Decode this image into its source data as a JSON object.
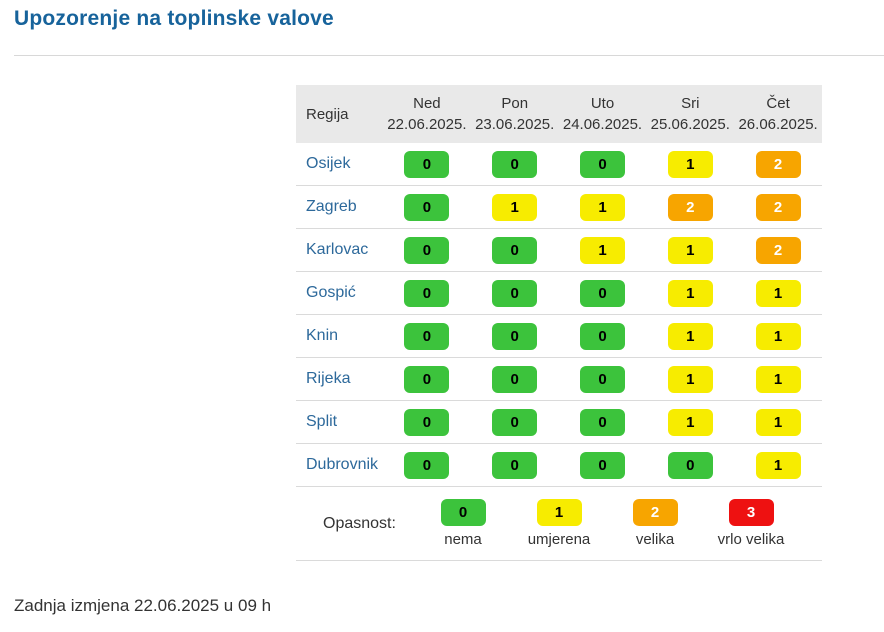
{
  "title": "Upozorenje na toplinske valove",
  "table": {
    "region_header": "Regija",
    "days": [
      {
        "day": "Ned",
        "date": "22.06.2025."
      },
      {
        "day": "Pon",
        "date": "23.06.2025."
      },
      {
        "day": "Uto",
        "date": "24.06.2025."
      },
      {
        "day": "Sri",
        "date": "25.06.2025."
      },
      {
        "day": "Čet",
        "date": "26.06.2025."
      }
    ],
    "rows": [
      {
        "region": "Osijek",
        "values": [
          0,
          0,
          0,
          1,
          2
        ]
      },
      {
        "region": "Zagreb",
        "values": [
          0,
          1,
          1,
          2,
          2
        ]
      },
      {
        "region": "Karlovac",
        "values": [
          0,
          0,
          1,
          1,
          2
        ]
      },
      {
        "region": "Gospić",
        "values": [
          0,
          0,
          0,
          1,
          1
        ]
      },
      {
        "region": "Knin",
        "values": [
          0,
          0,
          0,
          1,
          1
        ]
      },
      {
        "region": "Rijeka",
        "values": [
          0,
          0,
          0,
          1,
          1
        ]
      },
      {
        "region": "Split",
        "values": [
          0,
          0,
          0,
          1,
          1
        ]
      },
      {
        "region": "Dubrovnik",
        "values": [
          0,
          0,
          0,
          0,
          1
        ]
      }
    ]
  },
  "legend": {
    "label": "Opasnost:",
    "items": [
      {
        "value": 0,
        "label": "nema"
      },
      {
        "value": 1,
        "label": "umjerena"
      },
      {
        "value": 2,
        "label": "velika"
      },
      {
        "value": 3,
        "label": "vrlo velika"
      }
    ]
  },
  "levels": {
    "0": {
      "bg": "#3cc33c",
      "fg": "#000000"
    },
    "1": {
      "bg": "#f7ec00",
      "fg": "#000000"
    },
    "2": {
      "bg": "#f7a500",
      "fg": "#ffffff"
    },
    "3": {
      "bg": "#ee1111",
      "fg": "#ffffff"
    }
  },
  "colors": {
    "title": "#17639b",
    "region_link": "#2d699b",
    "header_background": "#e9e9e9",
    "row_border": "#dadada",
    "text": "#333333"
  },
  "footer": {
    "last_updated": "Zadnja izmjena 22.06.2025 u 09 h"
  },
  "chart_data": {
    "type": "table",
    "title": "Upozorenje na toplinske valove",
    "columns": [
      "Regija",
      "Ned 22.06.2025.",
      "Pon 23.06.2025.",
      "Uto 24.06.2025.",
      "Sri 25.06.2025.",
      "Čet 26.06.2025."
    ],
    "categories": [
      "22.06.2025.",
      "23.06.2025.",
      "24.06.2025.",
      "25.06.2025.",
      "26.06.2025."
    ],
    "series": [
      {
        "name": "Osijek",
        "values": [
          0,
          0,
          0,
          1,
          2
        ]
      },
      {
        "name": "Zagreb",
        "values": [
          0,
          1,
          1,
          2,
          2
        ]
      },
      {
        "name": "Karlovac",
        "values": [
          0,
          0,
          1,
          1,
          2
        ]
      },
      {
        "name": "Gospić",
        "values": [
          0,
          0,
          0,
          1,
          1
        ]
      },
      {
        "name": "Knin",
        "values": [
          0,
          0,
          0,
          1,
          1
        ]
      },
      {
        "name": "Rijeka",
        "values": [
          0,
          0,
          0,
          1,
          1
        ]
      },
      {
        "name": "Split",
        "values": [
          0,
          0,
          0,
          1,
          1
        ]
      },
      {
        "name": "Dubrovnik",
        "values": [
          0,
          0,
          0,
          0,
          1
        ]
      }
    ],
    "value_scale": [
      {
        "value": 0,
        "meaning": "nema",
        "color": "#3cc33c"
      },
      {
        "value": 1,
        "meaning": "umjerena",
        "color": "#f7ec00"
      },
      {
        "value": 2,
        "meaning": "velika",
        "color": "#f7a500"
      },
      {
        "value": 3,
        "meaning": "vrlo velika",
        "color": "#ee1111"
      }
    ],
    "legend_position": "bottom"
  }
}
